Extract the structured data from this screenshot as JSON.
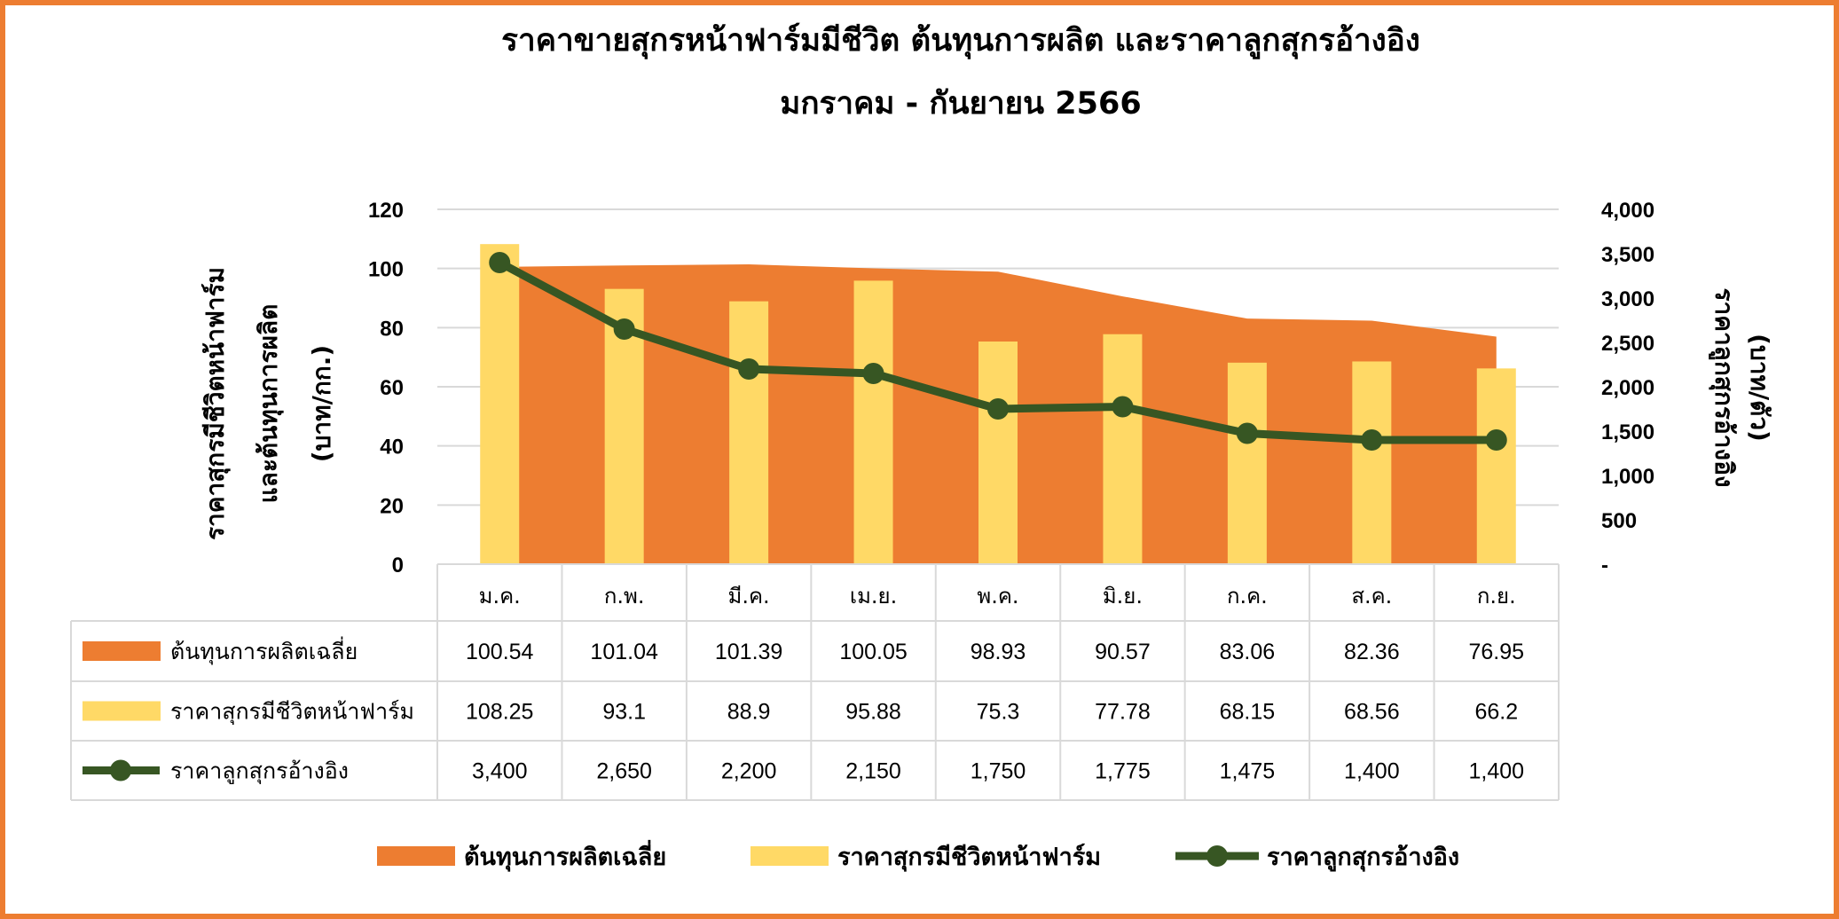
{
  "chart_data": {
    "type": "bar",
    "title": "ราคาขายสุกรหน้าฟาร์มมีชีวิต ต้นทุนการผลิต และราคาลูกสุกรอ้างอิง",
    "subtitle": "มกราคม - กันยายน 2566",
    "ylabel_left": [
      "ราคาสุกรมีชีวิตหน้าฟาร์ม",
      "และต้นทุนการผลิต",
      "(บาท/กก.)"
    ],
    "ylabel_right": [
      "ราคาลูกสุกรอ้างอิง",
      "(บาท/ตัว)"
    ],
    "categories": [
      "ม.ค.",
      "ก.พ.",
      "มี.ค.",
      "เม.ย.",
      "พ.ค.",
      "มิ.ย.",
      "ก.ค.",
      "ส.ค.",
      "ก.ย."
    ],
    "ylim_left": [
      0,
      120
    ],
    "yticks_left": [
      "0",
      "20",
      "40",
      "60",
      "80",
      "100",
      "120"
    ],
    "ylim_right": [
      0,
      4000
    ],
    "yticks_right": [
      "-",
      "500",
      "1,000",
      "1,500",
      "2,000",
      "2,500",
      "3,000",
      "3,500",
      "4,000"
    ],
    "grid": true,
    "legend_position": "bottom",
    "series": [
      {
        "name": "ต้นทุนการผลิตเฉลี่ย",
        "type": "area",
        "axis": "left",
        "color": "#ED7D31",
        "values": [
          100.54,
          101.04,
          101.39,
          100.05,
          98.93,
          90.57,
          83.06,
          82.36,
          76.95
        ],
        "labels": [
          "100.54",
          "101.04",
          "101.39",
          "100.05",
          "98.93",
          "90.57",
          "83.06",
          "82.36",
          "76.95"
        ]
      },
      {
        "name": "ราคาสุกรมีชีวิตหน้าฟาร์ม",
        "type": "bar",
        "axis": "left",
        "color": "#FFD966",
        "values": [
          108.25,
          93.1,
          88.9,
          95.88,
          75.3,
          77.78,
          68.15,
          68.56,
          66.2
        ],
        "labels": [
          "108.25",
          "93.1",
          "88.9",
          "95.88",
          "75.3",
          "77.78",
          "68.15",
          "68.56",
          "66.2"
        ]
      },
      {
        "name": "ราคาลูกสุกรอ้างอิง",
        "type": "line",
        "axis": "right",
        "color": "#375623",
        "values": [
          3400,
          2650,
          2200,
          2150,
          1750,
          1775,
          1475,
          1400,
          1400
        ],
        "labels": [
          "3,400",
          "2,650",
          "2,200",
          "2,150",
          "1,750",
          "1,775",
          "1,475",
          "1,400",
          "1,400"
        ]
      }
    ]
  },
  "colors": {
    "frame": "#ED7D31",
    "grid": "#D9D9D9"
  }
}
